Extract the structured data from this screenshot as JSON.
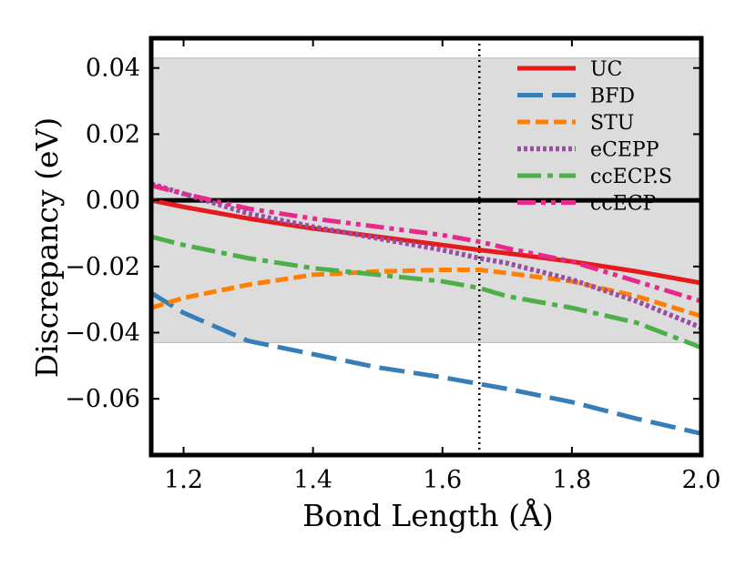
{
  "chart_data": {
    "type": "line",
    "title": "",
    "xlabel": "Bond Length (Å)",
    "ylabel": "Discrepancy (eV)",
    "xlim": [
      1.15,
      2.0
    ],
    "ylim": [
      -0.077,
      0.049
    ],
    "xticks": [
      1.2,
      1.4,
      1.6,
      1.8,
      2.0
    ],
    "xtick_labels": [
      "1.2",
      "1.4",
      "1.6",
      "1.8",
      "2.0"
    ],
    "yticks": [
      0.04,
      0.02,
      0.0,
      -0.02,
      -0.04,
      -0.06
    ],
    "ytick_labels": [
      "0.04",
      "0.02",
      "0.00",
      "−0.02",
      "−0.04",
      "−0.06"
    ],
    "shaded_band": {
      "ymin": -0.043,
      "ymax": 0.043,
      "color": "#dcdcdc"
    },
    "zero_line": {
      "y": 0.0,
      "color": "#000000"
    },
    "vertical_line": {
      "x": 1.657,
      "style": "dotted",
      "color": "#000000"
    },
    "legend_position": "top-right",
    "x": [
      1.15,
      1.2,
      1.3,
      1.4,
      1.5,
      1.6,
      1.657,
      1.7,
      1.8,
      1.9,
      2.0
    ],
    "series": [
      {
        "name": "UC",
        "color": "#e41a1c",
        "dash": "solid",
        "values": [
          0.0,
          -0.002,
          -0.0055,
          -0.0085,
          -0.011,
          -0.0135,
          -0.015,
          -0.016,
          -0.0185,
          -0.0215,
          -0.025
        ]
      },
      {
        "name": "BFD",
        "color": "#377eb8",
        "dash": "long-dash",
        "values": [
          -0.028,
          -0.034,
          -0.0425,
          -0.0465,
          -0.0505,
          -0.0535,
          -0.0555,
          -0.057,
          -0.061,
          -0.066,
          -0.0705
        ]
      },
      {
        "name": "STU",
        "color": "#ff7f00",
        "dash": "dash",
        "values": [
          -0.0325,
          -0.0295,
          -0.0255,
          -0.0225,
          -0.0215,
          -0.021,
          -0.021,
          -0.022,
          -0.0245,
          -0.029,
          -0.035
        ]
      },
      {
        "name": "eCEPP",
        "color": "#984ea3",
        "dash": "dotted",
        "values": [
          0.005,
          0.002,
          -0.004,
          -0.008,
          -0.0115,
          -0.015,
          -0.0175,
          -0.019,
          -0.024,
          -0.0305,
          -0.0385
        ]
      },
      {
        "name": "ccECP.S",
        "color": "#4daf4a",
        "dash": "dash-dot",
        "values": [
          -0.011,
          -0.0135,
          -0.0175,
          -0.0205,
          -0.0225,
          -0.0245,
          -0.0265,
          -0.029,
          -0.0325,
          -0.037,
          -0.0445
        ]
      },
      {
        "name": "ccECP",
        "color": "#e7298a",
        "dash": "dash-dot-dot",
        "values": [
          0.0045,
          0.002,
          -0.0025,
          -0.0055,
          -0.008,
          -0.0105,
          -0.0125,
          -0.0145,
          -0.0185,
          -0.0245,
          -0.0305
        ]
      }
    ]
  }
}
